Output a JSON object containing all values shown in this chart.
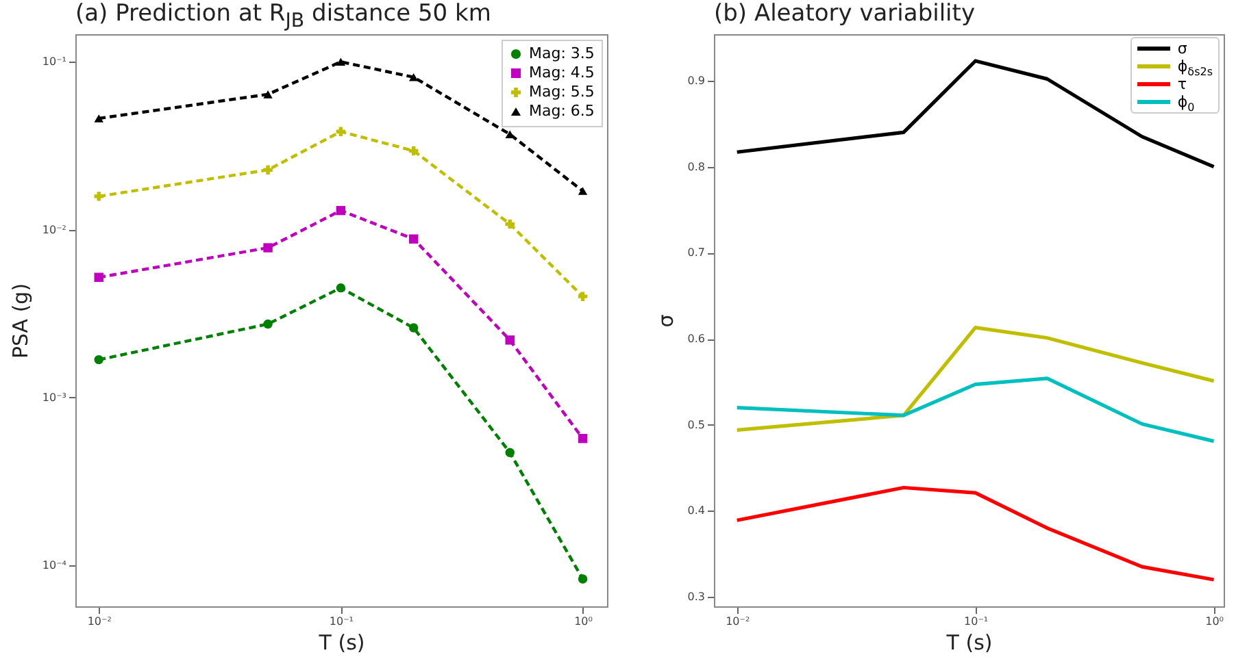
{
  "chart_data": [
    {
      "type": "line",
      "title": "(a)   Prediction at R$_{JB}$ distance 50 km",
      "xlabel": "T (s)",
      "ylabel": "PSA (g)",
      "log": "xy",
      "legend": "top right",
      "line_style": "dashed",
      "x": [
        0.01,
        0.05,
        0.1,
        0.2,
        0.5,
        1
      ],
      "xlim": [
        0.008,
        1.26
      ],
      "ylim": [
        5.7e-05,
        0.146
      ],
      "xticks": [
        {
          "value": 0.01,
          "label": "10⁻²"
        },
        {
          "value": 0.1,
          "label": "10⁻¹"
        },
        {
          "value": 1,
          "label": "10⁰"
        }
      ],
      "yticks": [
        {
          "value": 0.1,
          "label": "10⁻¹"
        },
        {
          "value": 0.01,
          "label": "10⁻²"
        },
        {
          "value": 0.001,
          "label": "10⁻³"
        },
        {
          "value": 0.0001,
          "label": "10⁻⁴"
        }
      ],
      "series": [
        {
          "name": "Mag: 3.5",
          "color": "#008000",
          "marker": "circle",
          "values": [
            0.00168,
            0.00274,
            0.0045,
            0.0026,
            0.00047,
            8.3e-05
          ]
        },
        {
          "name": "Mag: 4.5",
          "color": "#bf00bf",
          "marker": "square",
          "values": [
            0.0052,
            0.0078,
            0.013,
            0.0088,
            0.0022,
            0.00057
          ]
        },
        {
          "name": "Mag: 5.5",
          "color": "#bfbf00",
          "marker": "cross",
          "values": [
            0.0158,
            0.0227,
            0.0384,
            0.0295,
            0.0108,
            0.004
          ]
        },
        {
          "name": "Mag: 6.5",
          "color": "#000000",
          "marker": "triangle",
          "values": [
            0.046,
            0.064,
            0.1,
            0.081,
            0.037,
            0.017
          ]
        }
      ]
    },
    {
      "type": "line",
      "title": "(b)   Aleatory variability",
      "xlabel": "T (s)",
      "ylabel": "σ",
      "log": "x",
      "legend": "top right",
      "line_style": "solid",
      "x": [
        0.01,
        0.05,
        0.1,
        0.2,
        0.5,
        1
      ],
      "xlim": [
        0.008,
        1.1
      ],
      "ylim": [
        0.289,
        0.954
      ],
      "xticks": [
        {
          "value": 0.01,
          "label": "10⁻²"
        },
        {
          "value": 0.1,
          "label": "10⁻¹"
        },
        {
          "value": 1,
          "label": "10⁰"
        }
      ],
      "yticks": [
        0.3,
        0.4,
        0.5,
        0.6,
        0.7,
        0.8,
        0.9
      ],
      "series": [
        {
          "name": "σ",
          "color": "#000000",
          "values": [
            0.817,
            0.84,
            0.923,
            0.902,
            0.835,
            0.8
          ]
        },
        {
          "name": "ϕ$_{δs2s}$",
          "color": "#bfbf00",
          "values": [
            0.494,
            0.511,
            0.613,
            0.601,
            0.572,
            0.551
          ]
        },
        {
          "name": "τ",
          "color": "#ff0000",
          "values": [
            0.389,
            0.427,
            0.421,
            0.38,
            0.335,
            0.32
          ]
        },
        {
          "name": "ϕ$_{0}$",
          "color": "#00bfbf",
          "values": [
            0.52,
            0.511,
            0.547,
            0.554,
            0.501,
            0.481
          ]
        }
      ]
    }
  ]
}
